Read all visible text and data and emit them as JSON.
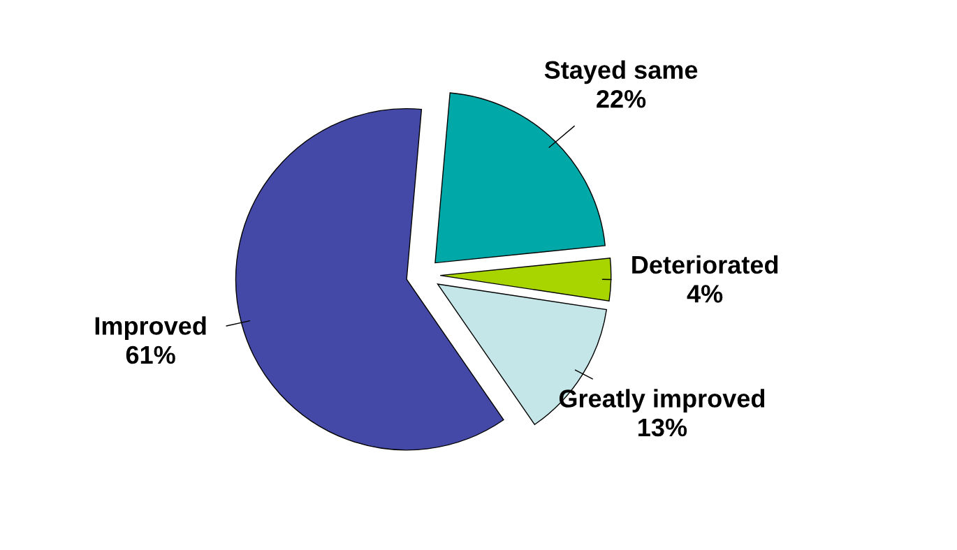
{
  "chart_data": {
    "type": "pie",
    "categories": [
      "Stayed same",
      "Deteriorated",
      "Greatly improved",
      "Improved"
    ],
    "values": [
      22,
      4,
      13,
      61
    ],
    "colors": [
      "#00a8a8",
      "#a8d400",
      "#c4e6e8",
      "#4449a8"
    ],
    "value_labels": [
      "22%",
      "4%",
      "13%",
      "61%"
    ]
  }
}
